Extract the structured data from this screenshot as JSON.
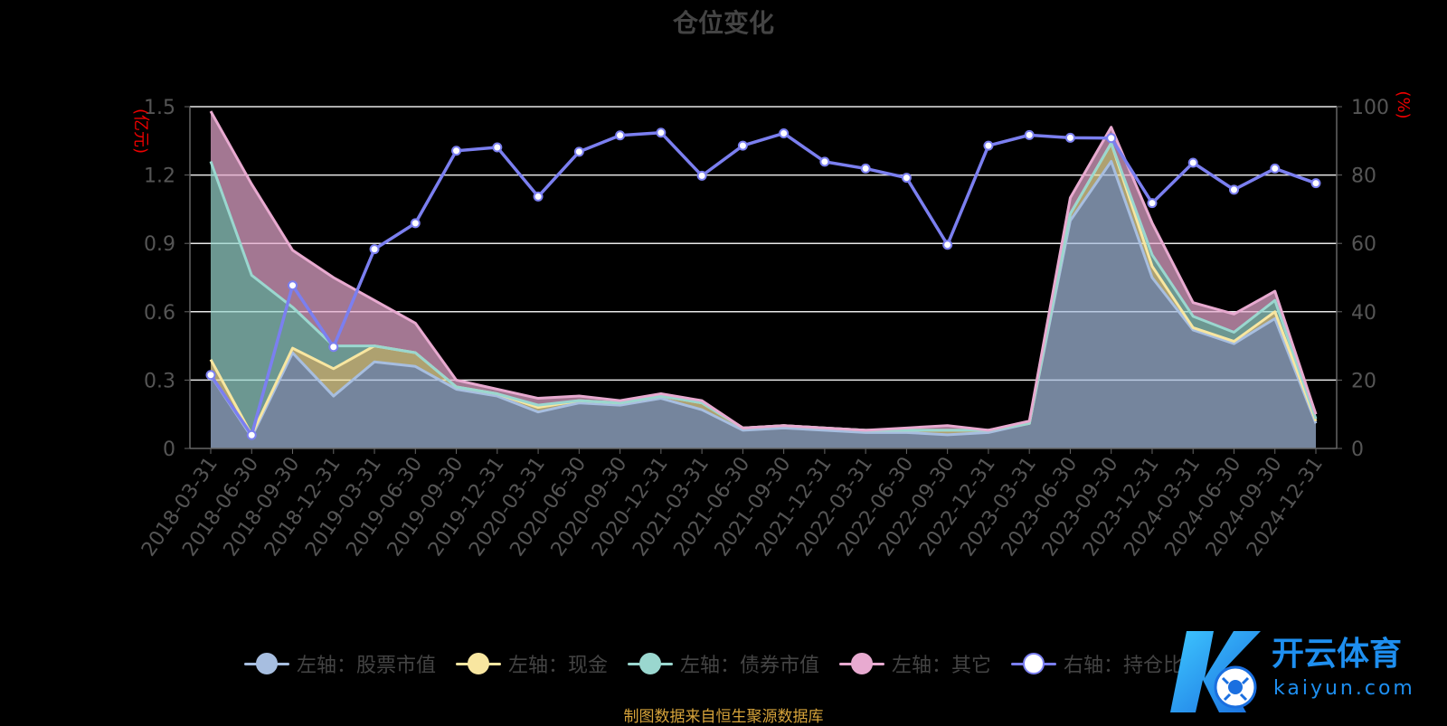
{
  "chart_data": {
    "type": "area",
    "title": "仓位变化",
    "ylabel_left": "(亿元)",
    "ylabel_right": "(%)",
    "ylim_left": [
      0,
      1.5
    ],
    "ylim_right": [
      0,
      100
    ],
    "y_ticks_left": [
      "0",
      "0.3",
      "0.6",
      "0.9",
      "1.2",
      "1.5"
    ],
    "y_ticks_right": [
      "0",
      "20",
      "40",
      "60",
      "80",
      "100"
    ],
    "grid": true,
    "legend_position": "bottom",
    "categories": [
      "2018-03-31",
      "2018-06-30",
      "2018-09-30",
      "2018-12-31",
      "2019-03-31",
      "2019-06-30",
      "2019-09-30",
      "2019-12-31",
      "2020-03-31",
      "2020-06-30",
      "2020-09-30",
      "2020-12-31",
      "2021-03-31",
      "2021-06-30",
      "2021-09-30",
      "2021-12-31",
      "2022-03-31",
      "2022-06-30",
      "2022-09-30",
      "2022-12-31",
      "2023-03-31",
      "2023-06-30",
      "2023-09-30",
      "2023-12-31",
      "2024-03-31",
      "2024-06-30",
      "2024-09-30",
      "2024-12-31"
    ],
    "series": [
      {
        "name": "左轴：股票市值",
        "axis": "left",
        "color": "#a7bee0",
        "values": [
          0.32,
          0.05,
          0.42,
          0.23,
          0.38,
          0.36,
          0.26,
          0.23,
          0.16,
          0.2,
          0.19,
          0.22,
          0.17,
          0.08,
          0.09,
          0.08,
          0.07,
          0.07,
          0.06,
          0.07,
          0.11,
          1.0,
          1.26,
          0.75,
          0.52,
          0.46,
          0.57,
          0.11
        ]
      },
      {
        "name": "左轴：现金",
        "axis": "left",
        "color": "#f8e6a0",
        "values": [
          0.07,
          0.01,
          0.02,
          0.12,
          0.07,
          0.06,
          0.01,
          0.01,
          0.02,
          0.01,
          0.01,
          0.01,
          0.03,
          0.01,
          0.01,
          0.01,
          0.01,
          0.01,
          0.02,
          0.01,
          0.0,
          0.03,
          0.08,
          0.05,
          0.01,
          0.01,
          0.03,
          0.01
        ]
      },
      {
        "name": "左轴：债券市值",
        "axis": "left",
        "color": "#9ad7cf",
        "values": [
          0.87,
          0.7,
          0.18,
          0.1,
          0.0,
          0.0,
          0.0,
          0.0,
          0.01,
          0.0,
          0.0,
          0.0,
          0.0,
          0.0,
          0.0,
          0.0,
          0.0,
          0.0,
          0.0,
          0.0,
          0.0,
          0.0,
          0.0,
          0.05,
          0.05,
          0.04,
          0.05,
          0.01
        ]
      },
      {
        "name": "左轴：其它",
        "axis": "left",
        "color": "#e8aad0",
        "values": [
          0.22,
          0.4,
          0.25,
          0.3,
          0.2,
          0.13,
          0.03,
          0.02,
          0.03,
          0.02,
          0.01,
          0.01,
          0.01,
          0.0,
          0.0,
          0.0,
          0.0,
          0.01,
          0.02,
          0.0,
          0.01,
          0.07,
          0.07,
          0.14,
          0.06,
          0.08,
          0.04,
          0.02
        ]
      },
      {
        "name": "右轴：持仓比例",
        "axis": "right",
        "color": "#7b7ff0",
        "values": [
          21.5,
          3.9,
          47.7,
          29.7,
          58.3,
          65.9,
          87.1,
          88.1,
          73.7,
          86.8,
          91.6,
          92.4,
          79.8,
          88.6,
          92.2,
          83.9,
          81.9,
          79.2,
          59.6,
          88.6,
          91.7,
          90.9,
          90.8,
          71.8,
          83.6,
          75.7,
          81.9,
          77.6
        ]
      }
    ]
  },
  "legend_labels": [
    "左轴：股票市值",
    "左轴：现金",
    "左轴：债券市值",
    "左轴：其它",
    "右轴：持仓比例"
  ],
  "source_note": "制图数据来自恒生聚源数据库",
  "watermark": {
    "logo_text": "开云体育",
    "domain_text": "kaiyun.com"
  }
}
